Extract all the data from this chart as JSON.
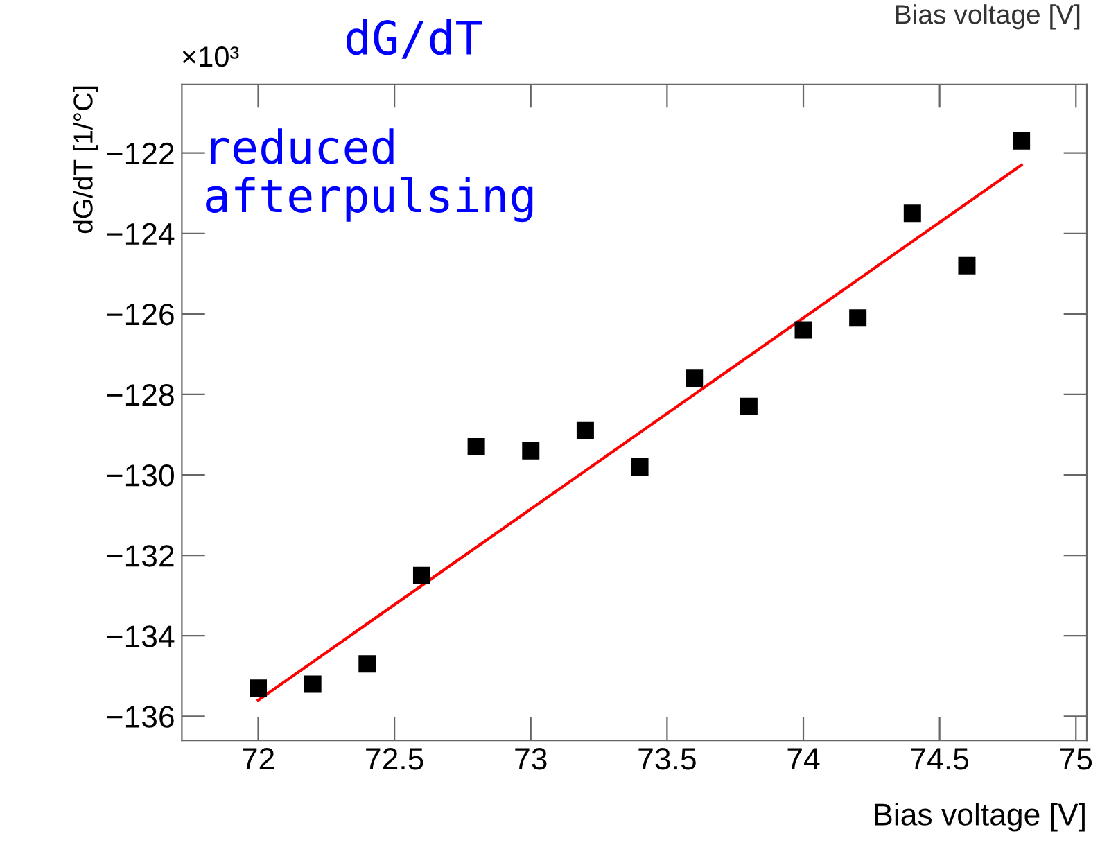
{
  "chart_data": {
    "type": "scatter",
    "xlabel": "Bias voltage [V]",
    "ylabel": "dG/dT [1/°C]",
    "x": [
      72.0,
      72.2,
      72.4,
      72.6,
      72.8,
      73.0,
      73.2,
      73.4,
      73.6,
      73.8,
      74.0,
      74.2,
      74.4,
      74.6,
      74.8
    ],
    "series": [
      {
        "color": "#000000",
        "marker": "square",
        "values": [
          -135.3,
          -135.2,
          -134.7,
          -132.5,
          -129.3,
          -129.4,
          -128.9,
          -129.8,
          -127.6,
          -128.3,
          -126.4,
          -126.1,
          -123.5,
          -124.8,
          -121.7
        ]
      },
      {
        "type": "line",
        "color": "#ff0000",
        "x": [
          72.0,
          74.8
        ],
        "values": [
          -135.6,
          -122.3
        ]
      }
    ],
    "xlim": [
      71.72,
      75.04
    ],
    "ylim": [
      -136.6,
      -120.3
    ],
    "xticks": [
      72,
      72.5,
      73,
      73.5,
      74,
      74.5,
      75
    ],
    "yticks": [
      {
        "value": -122,
        "label": "−122"
      },
      {
        "value": -124,
        "label": "−124"
      },
      {
        "value": -126,
        "label": "−126"
      },
      {
        "value": -128,
        "label": "−128"
      },
      {
        "value": -130,
        "label": "−130"
      },
      {
        "value": -132,
        "label": "−132"
      },
      {
        "value": -134,
        "label": "−134"
      },
      {
        "value": -136,
        "label": "−136"
      }
    ],
    "grid": false,
    "legend": false,
    "annotations": [
      "×10³",
      "dG/dT",
      "reduced\nafterpulsing",
      "Bias voltage [V]"
    ]
  }
}
